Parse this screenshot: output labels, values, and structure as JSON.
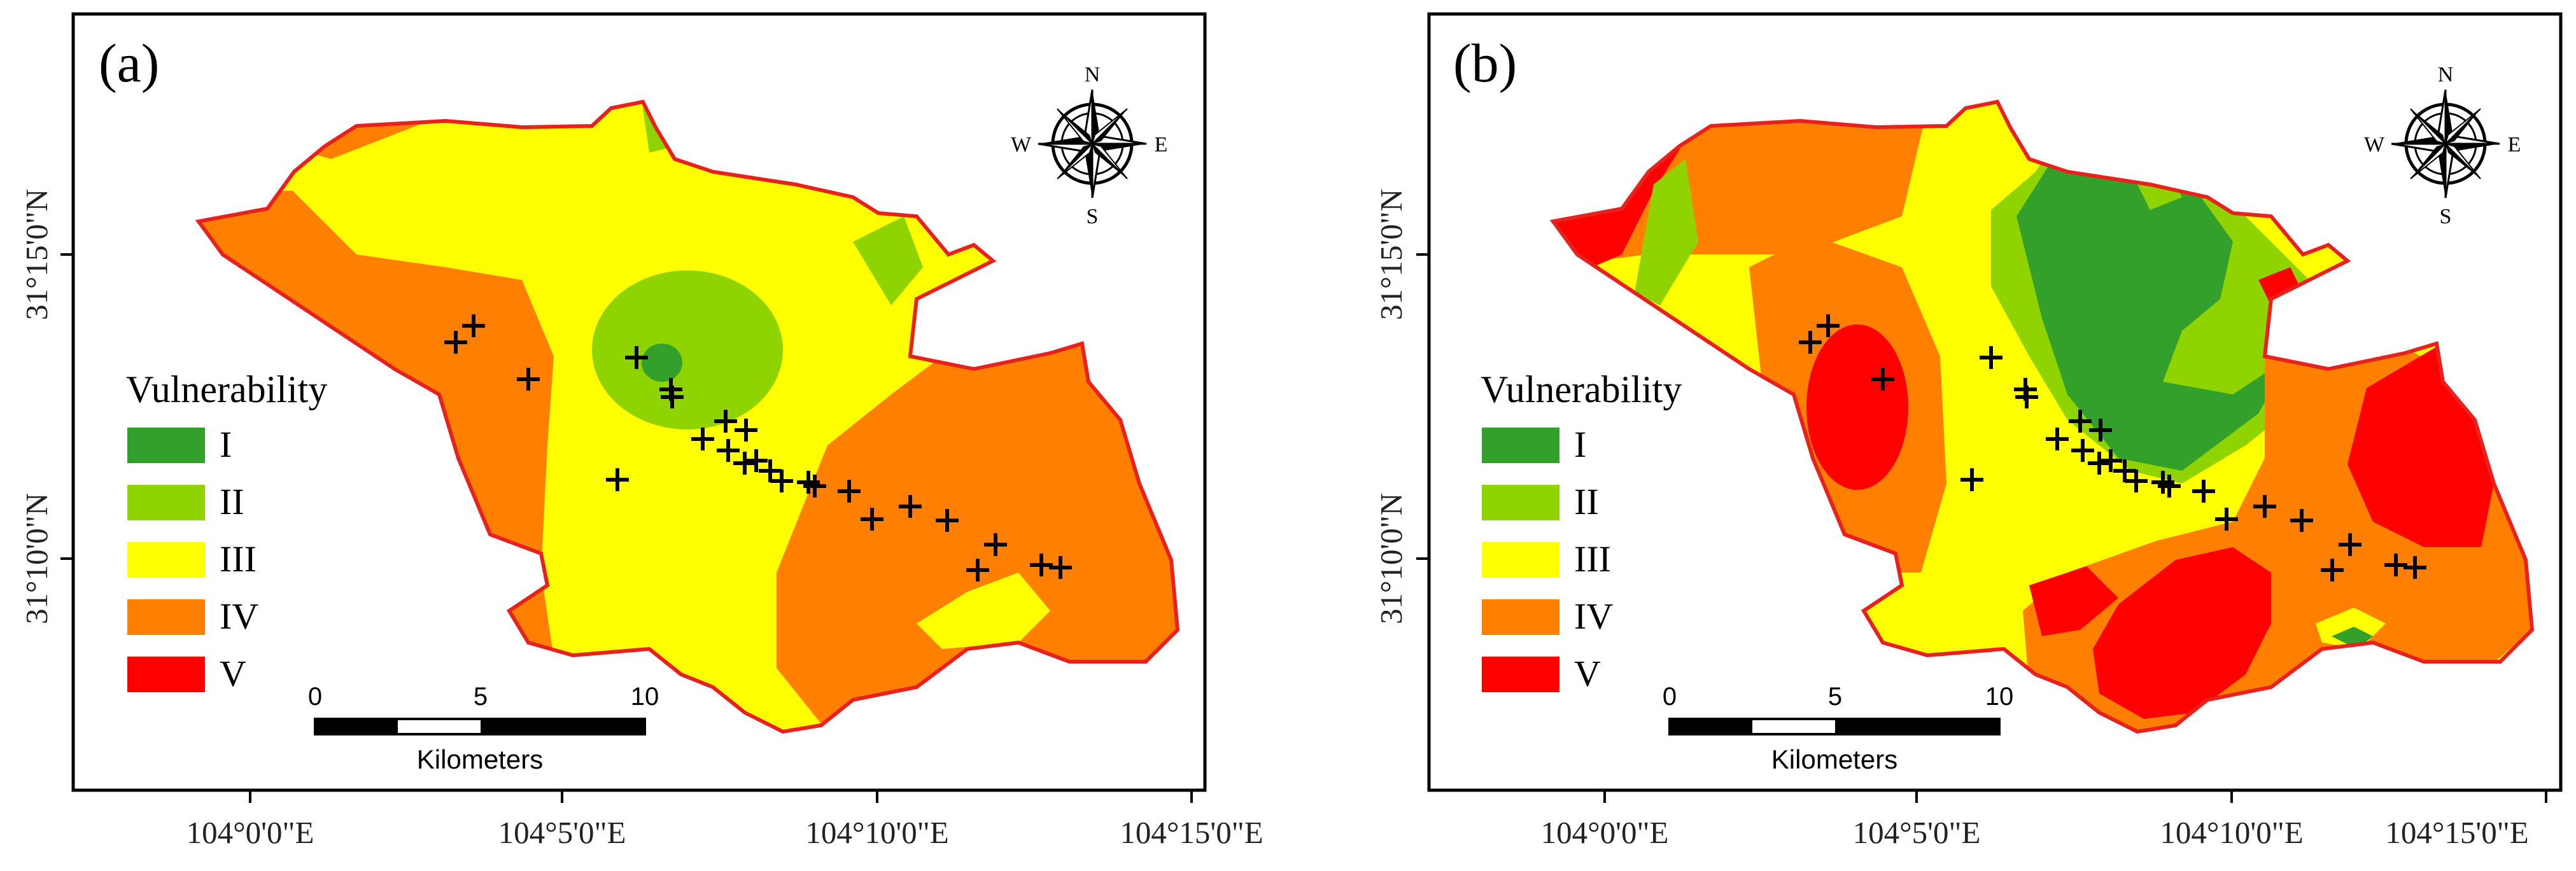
{
  "panels": [
    {
      "label": "(a)"
    },
    {
      "label": "(b)"
    }
  ],
  "axes": {
    "x_ticks": [
      "104°0'0\"E",
      "104°5'0\"E",
      "104°10'0\"E",
      "104°15'0\"E"
    ],
    "y_ticks": [
      "31°15'0\"N",
      "31°10'0\"N"
    ]
  },
  "legend": {
    "title": "Vulnerability",
    "items": [
      {
        "label": "I",
        "color": "#33a02c"
      },
      {
        "label": "II",
        "color": "#8fd400"
      },
      {
        "label": "III",
        "color": "#ffff00"
      },
      {
        "label": "IV",
        "color": "#ff8000"
      },
      {
        "label": "V",
        "color": "#ff0000"
      }
    ]
  },
  "scale_bar": {
    "ticks": [
      "0",
      "5",
      "10"
    ],
    "unit": "Kilometers"
  },
  "compass": {
    "n": "N",
    "s": "S",
    "e": "E",
    "w": "W"
  },
  "colors": {
    "boundary": "#e8211d",
    "class_I": "#33a02c",
    "class_II": "#8fd400",
    "class_III": "#ffff00",
    "class_IV": "#ff8000",
    "class_V": "#ff0000"
  }
}
